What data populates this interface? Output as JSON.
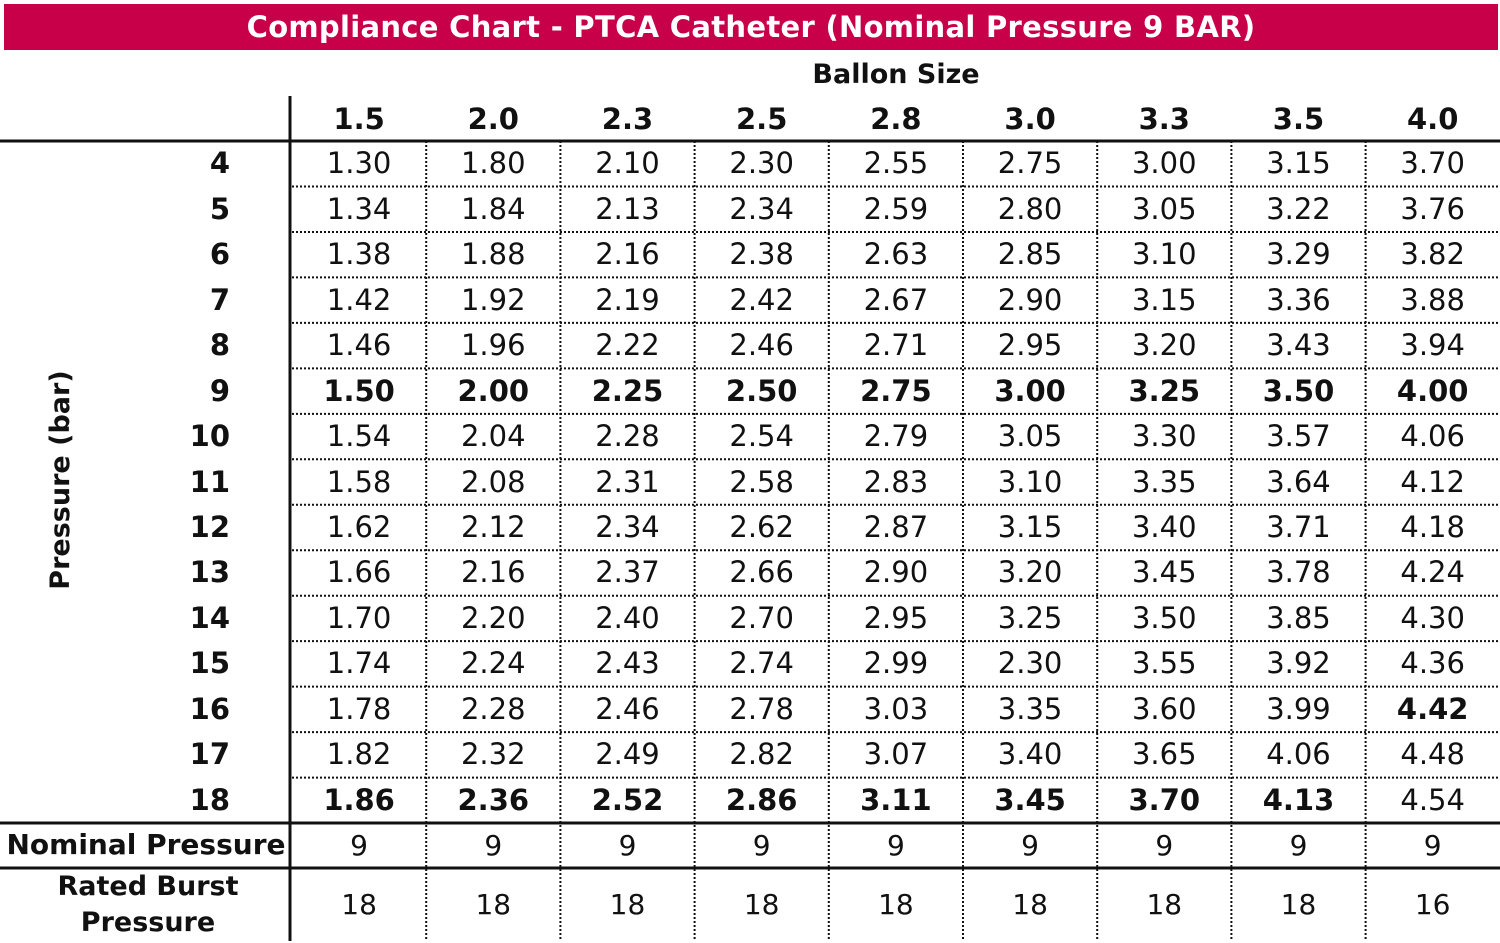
{
  "colors": {
    "title_background": "#c8004a",
    "title_text": "#ffffff"
  },
  "chart_data": {
    "type": "table",
    "title": "Compliance Chart - PTCA Catheter (Nominal Pressure 9 BAR)",
    "column_group_label": "Ballon Size",
    "row_axis_label": "Pressure (bar)",
    "columns": [
      "1.5",
      "2.0",
      "2.3",
      "2.5",
      "2.8",
      "3.0",
      "3.3",
      "3.5",
      "4.0"
    ],
    "rows": [
      {
        "pressure": "4",
        "values": [
          "1.30",
          "1.80",
          "2.10",
          "2.30",
          "2.55",
          "2.75",
          "3.00",
          "3.15",
          "3.70"
        ],
        "bold": []
      },
      {
        "pressure": "5",
        "values": [
          "1.34",
          "1.84",
          "2.13",
          "2.34",
          "2.59",
          "2.80",
          "3.05",
          "3.22",
          "3.76"
        ],
        "bold": []
      },
      {
        "pressure": "6",
        "values": [
          "1.38",
          "1.88",
          "2.16",
          "2.38",
          "2.63",
          "2.85",
          "3.10",
          "3.29",
          "3.82"
        ],
        "bold": []
      },
      {
        "pressure": "7",
        "values": [
          "1.42",
          "1.92",
          "2.19",
          "2.42",
          "2.67",
          "2.90",
          "3.15",
          "3.36",
          "3.88"
        ],
        "bold": []
      },
      {
        "pressure": "8",
        "values": [
          "1.46",
          "1.96",
          "2.22",
          "2.46",
          "2.71",
          "2.95",
          "3.20",
          "3.43",
          "3.94"
        ],
        "bold": []
      },
      {
        "pressure": "9",
        "values": [
          "1.50",
          "2.00",
          "2.25",
          "2.50",
          "2.75",
          "3.00",
          "3.25",
          "3.50",
          "4.00"
        ],
        "bold": [
          0,
          1,
          2,
          3,
          4,
          5,
          6,
          7,
          8
        ]
      },
      {
        "pressure": "10",
        "values": [
          "1.54",
          "2.04",
          "2.28",
          "2.54",
          "2.79",
          "3.05",
          "3.30",
          "3.57",
          "4.06"
        ],
        "bold": []
      },
      {
        "pressure": "11",
        "values": [
          "1.58",
          "2.08",
          "2.31",
          "2.58",
          "2.83",
          "3.10",
          "3.35",
          "3.64",
          "4.12"
        ],
        "bold": []
      },
      {
        "pressure": "12",
        "values": [
          "1.62",
          "2.12",
          "2.34",
          "2.62",
          "2.87",
          "3.15",
          "3.40",
          "3.71",
          "4.18"
        ],
        "bold": []
      },
      {
        "pressure": "13",
        "values": [
          "1.66",
          "2.16",
          "2.37",
          "2.66",
          "2.90",
          "3.20",
          "3.45",
          "3.78",
          "4.24"
        ],
        "bold": []
      },
      {
        "pressure": "14",
        "values": [
          "1.70",
          "2.20",
          "2.40",
          "2.70",
          "2.95",
          "3.25",
          "3.50",
          "3.85",
          "4.30"
        ],
        "bold": []
      },
      {
        "pressure": "15",
        "values": [
          "1.74",
          "2.24",
          "2.43",
          "2.74",
          "2.99",
          "2.30",
          "3.55",
          "3.92",
          "4.36"
        ],
        "bold": []
      },
      {
        "pressure": "16",
        "values": [
          "1.78",
          "2.28",
          "2.46",
          "2.78",
          "3.03",
          "3.35",
          "3.60",
          "3.99",
          "4.42"
        ],
        "bold": [
          8
        ]
      },
      {
        "pressure": "17",
        "values": [
          "1.82",
          "2.32",
          "2.49",
          "2.82",
          "3.07",
          "3.40",
          "3.65",
          "4.06",
          "4.48"
        ],
        "bold": []
      },
      {
        "pressure": "18",
        "values": [
          "1.86",
          "2.36",
          "2.52",
          "2.86",
          "3.11",
          "3.45",
          "3.70",
          "4.13",
          "4.54"
        ],
        "bold": [
          0,
          1,
          2,
          3,
          4,
          5,
          6,
          7
        ]
      }
    ],
    "footer_rows": [
      {
        "label": "Nominal Pressure",
        "values": [
          "9",
          "9",
          "9",
          "9",
          "9",
          "9",
          "9",
          "9",
          "9"
        ]
      },
      {
        "label": "Rated Burst Pressure",
        "values": [
          "18",
          "18",
          "18",
          "18",
          "18",
          "18",
          "18",
          "18",
          "16"
        ]
      }
    ]
  }
}
